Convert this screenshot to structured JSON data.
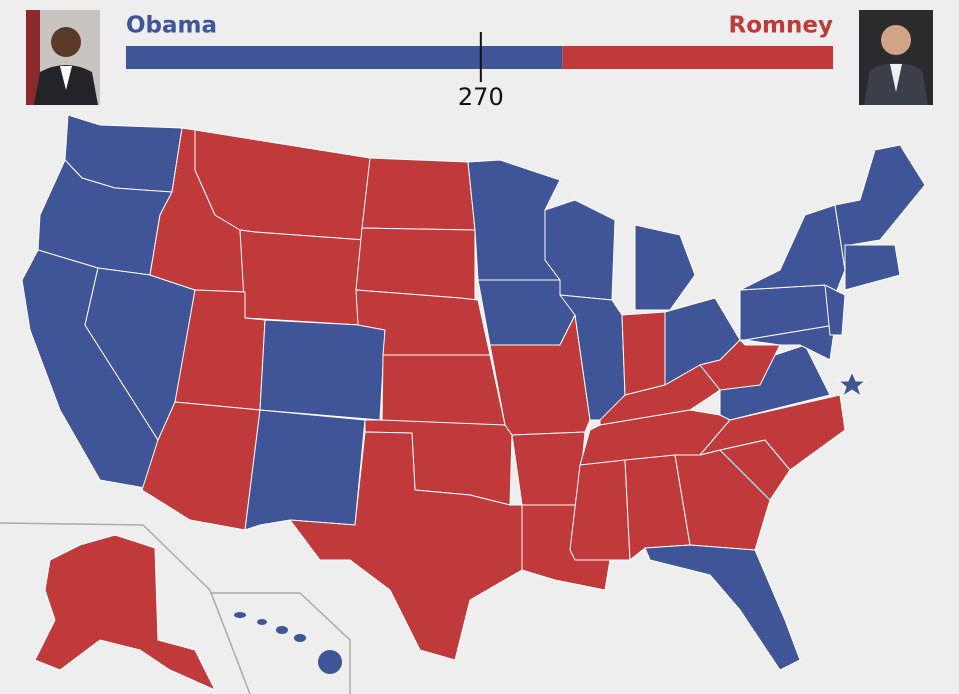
{
  "header": {
    "left": {
      "name": "Obama",
      "votes": 332,
      "color": "#3f5597"
    },
    "right": {
      "name": "Romney",
      "votes": 206,
      "color": "#c0393b"
    },
    "threshold": 270
  }
}
